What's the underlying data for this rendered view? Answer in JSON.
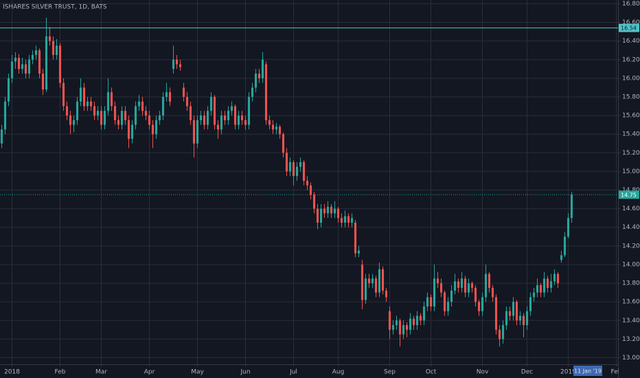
{
  "chart_data": {
    "type": "candlestick",
    "title": "ISHARES SILVER TRUST, 1D, BATS",
    "up_color": "#26a69a",
    "down_color": "#ef5350",
    "xlim": [
      -0.5,
      179.5
    ],
    "xticks": [
      {
        "value": 3,
        "label": "2018"
      },
      {
        "value": 17,
        "label": "Feb"
      },
      {
        "value": 29,
        "label": "Mar"
      },
      {
        "value": 43,
        "label": "Apr"
      },
      {
        "value": 57,
        "label": "May"
      },
      {
        "value": 71,
        "label": "Jun"
      },
      {
        "value": 85,
        "label": "Jul"
      },
      {
        "value": 98,
        "label": "Aug"
      },
      {
        "value": 113,
        "label": "Sep"
      },
      {
        "value": 125,
        "label": "Oct"
      },
      {
        "value": 140,
        "label": "Nov"
      },
      {
        "value": 153,
        "label": "Dec"
      },
      {
        "value": 165,
        "label": "2019"
      },
      {
        "value": 179,
        "label": "Feb"
      }
    ],
    "ylim": [
      12.93,
      16.84
    ],
    "yticks": [
      {
        "value": 13,
        "label": "13.00"
      },
      {
        "value": 13.2,
        "label": "13.20"
      },
      {
        "value": 13.4,
        "label": "13.40"
      },
      {
        "value": 13.6,
        "label": "13.60"
      },
      {
        "value": 13.8,
        "label": "13.80"
      },
      {
        "value": 14,
        "label": "14.00"
      },
      {
        "value": 14.2,
        "label": "14.20"
      },
      {
        "value": 14.4,
        "label": "14.40"
      },
      {
        "value": 14.6,
        "label": "14.60"
      },
      {
        "value": 14.8,
        "label": "14.80"
      },
      {
        "value": 15,
        "label": "15.00"
      },
      {
        "value": 15.2,
        "label": "15.20"
      },
      {
        "value": 15.4,
        "label": "15.40"
      },
      {
        "value": 15.6,
        "label": "15.60"
      },
      {
        "value": 15.8,
        "label": "15.80"
      },
      {
        "value": 16,
        "label": "16.00"
      },
      {
        "value": 16.2,
        "label": "16.20"
      },
      {
        "value": 16.4,
        "label": "16.40"
      },
      {
        "value": 16.6,
        "label": "16.60"
      },
      {
        "value": 16.8,
        "label": "16.80"
      }
    ],
    "grid": true,
    "price_lines": [
      {
        "value": 16.54,
        "color": "#4fc3c8",
        "style": "solid"
      },
      {
        "value": 14.75,
        "color": "#26a69a",
        "style": "dotted"
      }
    ],
    "crosshair_label": "11 Jan '19",
    "ohlc": [
      [
        15.3,
        15.5,
        15.25,
        15.45
      ],
      [
        15.45,
        15.8,
        15.4,
        15.75
      ],
      [
        15.75,
        16.05,
        15.7,
        16.0
      ],
      [
        16.0,
        16.25,
        15.95,
        16.18
      ],
      [
        16.18,
        16.28,
        16.1,
        16.22
      ],
      [
        16.22,
        16.26,
        16.05,
        16.1
      ],
      [
        16.1,
        16.22,
        16.05,
        16.15
      ],
      [
        16.15,
        16.2,
        16.0,
        16.05
      ],
      [
        16.05,
        16.25,
        16.0,
        16.2
      ],
      [
        16.2,
        16.3,
        16.15,
        16.25
      ],
      [
        16.25,
        16.35,
        16.2,
        16.3
      ],
      [
        16.3,
        16.32,
        16.0,
        16.05
      ],
      [
        16.05,
        16.1,
        15.82,
        15.88
      ],
      [
        15.88,
        16.65,
        15.85,
        16.45
      ],
      [
        16.45,
        16.55,
        16.35,
        16.4
      ],
      [
        16.4,
        16.45,
        16.2,
        16.25
      ],
      [
        16.25,
        16.42,
        16.2,
        16.35
      ],
      [
        16.35,
        16.38,
        15.9,
        15.95
      ],
      [
        15.95,
        16.0,
        15.65,
        15.7
      ],
      [
        15.7,
        15.75,
        15.55,
        15.6
      ],
      [
        15.6,
        15.65,
        15.4,
        15.5
      ],
      [
        15.5,
        15.6,
        15.42,
        15.55
      ],
      [
        15.55,
        15.8,
        15.5,
        15.75
      ],
      [
        15.75,
        16.0,
        15.7,
        15.9
      ],
      [
        15.9,
        15.95,
        15.65,
        15.7
      ],
      [
        15.7,
        15.8,
        15.65,
        15.75
      ],
      [
        15.75,
        15.8,
        15.65,
        15.7
      ],
      [
        15.7,
        15.75,
        15.55,
        15.6
      ],
      [
        15.6,
        15.7,
        15.55,
        15.65
      ],
      [
        15.65,
        15.7,
        15.45,
        15.5
      ],
      [
        15.5,
        15.7,
        15.45,
        15.65
      ],
      [
        15.65,
        16.0,
        15.6,
        15.85
      ],
      [
        15.85,
        15.9,
        15.65,
        15.7
      ],
      [
        15.7,
        15.75,
        15.5,
        15.55
      ],
      [
        15.55,
        15.6,
        15.45,
        15.5
      ],
      [
        15.5,
        15.7,
        15.45,
        15.65
      ],
      [
        15.65,
        15.7,
        15.5,
        15.55
      ],
      [
        15.55,
        15.6,
        15.25,
        15.35
      ],
      [
        15.35,
        15.55,
        15.3,
        15.5
      ],
      [
        15.5,
        15.75,
        15.45,
        15.7
      ],
      [
        15.7,
        15.82,
        15.65,
        15.75
      ],
      [
        15.75,
        15.8,
        15.6,
        15.65
      ],
      [
        15.65,
        15.7,
        15.55,
        15.6
      ],
      [
        15.6,
        15.65,
        15.45,
        15.5
      ],
      [
        15.5,
        15.55,
        15.25,
        15.4
      ],
      [
        15.4,
        15.6,
        15.35,
        15.55
      ],
      [
        15.55,
        15.65,
        15.5,
        15.6
      ],
      [
        15.6,
        15.85,
        15.55,
        15.8
      ],
      [
        15.8,
        15.95,
        15.75,
        15.85
      ],
      [
        15.85,
        15.9,
        15.7,
        15.75
      ],
      [
        16.1,
        16.35,
        16.05,
        16.2
      ],
      [
        16.2,
        16.25,
        16.1,
        16.15
      ],
      [
        16.15,
        16.2,
        16.08,
        16.12
      ],
      [
        15.9,
        15.95,
        15.75,
        15.8
      ],
      [
        15.8,
        15.85,
        15.65,
        15.7
      ],
      [
        15.7,
        15.75,
        15.5,
        15.55
      ],
      [
        15.55,
        15.6,
        15.15,
        15.3
      ],
      [
        15.3,
        15.6,
        15.25,
        15.55
      ],
      [
        15.55,
        15.65,
        15.5,
        15.6
      ],
      [
        15.6,
        15.65,
        15.45,
        15.5
      ],
      [
        15.5,
        15.7,
        15.45,
        15.65
      ],
      [
        15.65,
        15.85,
        15.6,
        15.8
      ],
      [
        15.8,
        15.82,
        15.45,
        15.5
      ],
      [
        15.5,
        15.55,
        15.35,
        15.45
      ],
      [
        15.45,
        15.65,
        15.4,
        15.6
      ],
      [
        15.6,
        15.65,
        15.5,
        15.55
      ],
      [
        15.55,
        15.7,
        15.5,
        15.65
      ],
      [
        15.65,
        15.75,
        15.6,
        15.7
      ],
      [
        15.7,
        15.72,
        15.45,
        15.5
      ],
      [
        15.5,
        15.65,
        15.45,
        15.6
      ],
      [
        15.6,
        15.65,
        15.5,
        15.55
      ],
      [
        15.55,
        15.6,
        15.45,
        15.5
      ],
      [
        15.5,
        15.85,
        15.45,
        15.8
      ],
      [
        15.8,
        15.95,
        15.75,
        15.9
      ],
      [
        15.9,
        16.1,
        15.85,
        16.05
      ],
      [
        16.05,
        16.1,
        15.95,
        16.0
      ],
      [
        16.0,
        16.28,
        15.95,
        16.2
      ],
      [
        16.15,
        16.18,
        15.5,
        15.55
      ],
      [
        15.55,
        15.6,
        15.45,
        15.5
      ],
      [
        15.5,
        15.55,
        15.4,
        15.45
      ],
      [
        15.45,
        15.52,
        15.4,
        15.48
      ],
      [
        15.48,
        15.5,
        15.35,
        15.4
      ],
      [
        15.4,
        15.42,
        15.15,
        15.2
      ],
      [
        15.2,
        15.25,
        14.95,
        15.0
      ],
      [
        15.0,
        15.15,
        14.95,
        15.1
      ],
      [
        15.1,
        15.12,
        14.85,
        14.95
      ],
      [
        14.95,
        15.1,
        14.9,
        15.05
      ],
      [
        15.05,
        15.15,
        15.0,
        15.1
      ],
      [
        15.1,
        15.12,
        14.85,
        14.9
      ],
      [
        14.9,
        14.95,
        14.8,
        14.85
      ],
      [
        14.85,
        14.88,
        14.7,
        14.75
      ],
      [
        14.75,
        14.78,
        14.55,
        14.6
      ],
      [
        14.6,
        14.65,
        14.38,
        14.45
      ],
      [
        14.45,
        14.65,
        14.4,
        14.6
      ],
      [
        14.6,
        14.65,
        14.5,
        14.55
      ],
      [
        14.55,
        14.68,
        14.5,
        14.62
      ],
      [
        14.62,
        14.65,
        14.5,
        14.55
      ],
      [
        14.55,
        14.68,
        14.5,
        14.6
      ],
      [
        14.6,
        14.62,
        14.45,
        14.5
      ],
      [
        14.5,
        14.55,
        14.4,
        14.45
      ],
      [
        14.45,
        14.58,
        14.4,
        14.52
      ],
      [
        14.52,
        14.55,
        14.4,
        14.45
      ],
      [
        14.45,
        14.55,
        14.4,
        14.5
      ],
      [
        14.45,
        14.48,
        14.08,
        14.12
      ],
      [
        14.12,
        14.2,
        14.08,
        14.15
      ],
      [
        14.0,
        14.05,
        13.52,
        13.62
      ],
      [
        13.62,
        13.9,
        13.58,
        13.85
      ],
      [
        13.85,
        13.9,
        13.75,
        13.8
      ],
      [
        13.8,
        13.9,
        13.75,
        13.85
      ],
      [
        13.85,
        13.88,
        13.65,
        13.7
      ],
      [
        13.7,
        14.02,
        13.65,
        13.95
      ],
      [
        13.95,
        13.98,
        13.68,
        13.72
      ],
      [
        13.72,
        13.75,
        13.6,
        13.65
      ],
      [
        13.5,
        13.55,
        13.2,
        13.3
      ],
      [
        13.3,
        13.4,
        13.25,
        13.35
      ],
      [
        13.35,
        13.45,
        13.3,
        13.4
      ],
      [
        13.4,
        13.42,
        13.12,
        13.25
      ],
      [
        13.25,
        13.4,
        13.2,
        13.35
      ],
      [
        13.35,
        13.38,
        13.22,
        13.3
      ],
      [
        13.3,
        13.48,
        13.25,
        13.42
      ],
      [
        13.42,
        13.45,
        13.3,
        13.35
      ],
      [
        13.35,
        13.5,
        13.3,
        13.45
      ],
      [
        13.45,
        13.48,
        13.35,
        13.4
      ],
      [
        13.4,
        13.6,
        13.35,
        13.55
      ],
      [
        13.55,
        13.7,
        13.5,
        13.65
      ],
      [
        13.65,
        13.68,
        13.5,
        13.55
      ],
      [
        13.55,
        14.0,
        13.5,
        13.85
      ],
      [
        13.85,
        13.92,
        13.75,
        13.8
      ],
      [
        13.8,
        13.85,
        13.65,
        13.7
      ],
      [
        13.7,
        13.72,
        13.45,
        13.5
      ],
      [
        13.5,
        13.65,
        13.45,
        13.6
      ],
      [
        13.6,
        13.78,
        13.55,
        13.72
      ],
      [
        13.72,
        13.9,
        13.68,
        13.82
      ],
      [
        13.82,
        13.85,
        13.7,
        13.75
      ],
      [
        13.75,
        13.92,
        13.7,
        13.85
      ],
      [
        13.85,
        13.88,
        13.65,
        13.7
      ],
      [
        13.7,
        13.85,
        13.65,
        13.8
      ],
      [
        13.8,
        13.82,
        13.7,
        13.75
      ],
      [
        13.75,
        13.78,
        13.55,
        13.6
      ],
      [
        13.6,
        13.62,
        13.45,
        13.5
      ],
      [
        13.5,
        13.7,
        13.45,
        13.65
      ],
      [
        13.65,
        14.0,
        13.6,
        13.9
      ],
      [
        13.9,
        13.92,
        13.7,
        13.75
      ],
      [
        13.75,
        13.78,
        13.6,
        13.65
      ],
      [
        13.65,
        13.68,
        13.25,
        13.3
      ],
      [
        13.3,
        13.35,
        13.12,
        13.2
      ],
      [
        13.2,
        13.4,
        13.15,
        13.35
      ],
      [
        13.35,
        13.55,
        13.3,
        13.5
      ],
      [
        13.5,
        13.55,
        13.4,
        13.45
      ],
      [
        13.45,
        13.65,
        13.4,
        13.6
      ],
      [
        13.6,
        13.62,
        13.35,
        13.4
      ],
      [
        13.4,
        13.5,
        13.35,
        13.45
      ],
      [
        13.45,
        13.48,
        13.22,
        13.35
      ],
      [
        13.35,
        13.55,
        13.3,
        13.5
      ],
      [
        13.5,
        13.7,
        13.45,
        13.65
      ],
      [
        13.65,
        13.75,
        13.6,
        13.7
      ],
      [
        13.7,
        13.85,
        13.65,
        13.78
      ],
      [
        13.78,
        13.8,
        13.65,
        13.7
      ],
      [
        13.7,
        13.92,
        13.65,
        13.85
      ],
      [
        13.85,
        13.88,
        13.7,
        13.75
      ],
      [
        13.75,
        13.9,
        13.7,
        13.82
      ],
      [
        13.82,
        13.95,
        13.78,
        13.9
      ],
      [
        13.9,
        13.92,
        13.75,
        13.8
      ],
      [
        14.05,
        14.15,
        14.02,
        14.1
      ],
      [
        14.1,
        14.35,
        14.08,
        14.3
      ],
      [
        14.3,
        14.55,
        14.28,
        14.5
      ],
      [
        14.5,
        14.78,
        14.45,
        14.75
      ]
    ]
  }
}
